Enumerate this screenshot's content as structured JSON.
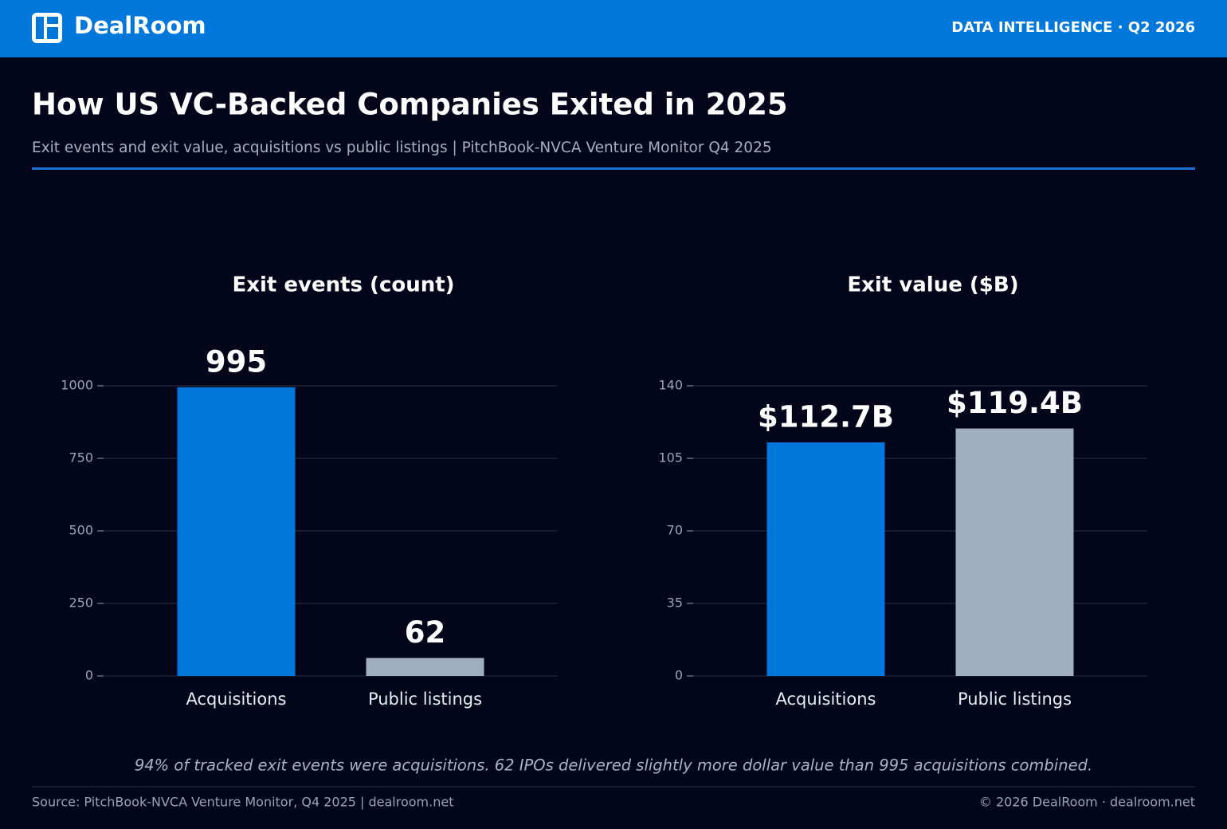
{
  "header": {
    "brand": "DealRoom",
    "tagline": "DATA INTELLIGENCE · Q2 2026"
  },
  "title": "How US VC-Backed Companies Exited in 2025",
  "subtitle": "Exit events and exit value, acquisitions vs public listings | PitchBook-NVCA Venture Monitor Q4 2025",
  "chart_data": [
    {
      "type": "bar",
      "title": "Exit events (count)",
      "categories": [
        "Acquisitions",
        "Public listings"
      ],
      "values": [
        995,
        62
      ],
      "colors": [
        "#0078db",
        "#a0aec2"
      ],
      "ylim": [
        0,
        1000
      ],
      "yticks": [
        0,
        250,
        500,
        750,
        1000
      ],
      "grid": true
    },
    {
      "type": "bar",
      "title": "Exit value ($B)",
      "categories": [
        "Acquisitions",
        "Public listings"
      ],
      "values": [
        112.7,
        119.4
      ],
      "value_labels": [
        "$112.7B",
        "$119.4B"
      ],
      "colors": [
        "#0078db",
        "#a0aec2"
      ],
      "ylim": [
        0,
        140
      ],
      "yticks": [
        0,
        35,
        70,
        105,
        140
      ],
      "grid": true
    }
  ],
  "note": "94% of tracked exit events were acquisitions. 62 IPOs delivered slightly more dollar value than 995 acquisitions combined.",
  "footer": {
    "source": "Source: PitchBook-NVCA Venture Monitor, Q4 2025 | dealroom.net",
    "copyright": "© 2026 DealRoom · dealroom.net"
  }
}
